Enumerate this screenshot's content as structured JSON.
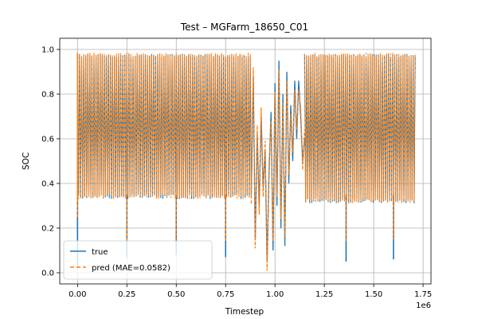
{
  "chart_data": {
    "type": "line",
    "title": "Test – MGFarm_18650_C01",
    "xlabel": "Timestep",
    "ylabel": "SOC",
    "x_multiplier_label": "1e6",
    "xlim": [
      -90000,
      1790000
    ],
    "ylim": [
      -0.05,
      1.05
    ],
    "grid": true,
    "legend_position": "lower-left",
    "x_ticks": [
      0,
      250000,
      500000,
      750000,
      1000000,
      1250000,
      1500000,
      1750000
    ],
    "x_tick_labels": [
      "0.00",
      "0.25",
      "0.50",
      "0.75",
      "1.00",
      "1.25",
      "1.50",
      "1.75"
    ],
    "y_ticks": [
      0.0,
      0.2,
      0.4,
      0.6,
      0.8,
      1.0
    ],
    "y_tick_labels": [
      "0.0",
      "0.2",
      "0.4",
      "0.6",
      "0.8",
      "1.0"
    ],
    "series": [
      {
        "name": "true",
        "style": "solid",
        "color": "#1f77b4",
        "x_range": [
          0,
          1710000
        ],
        "segments": [
          {
            "x_start": 0,
            "x_end": 880000,
            "upper": 0.98,
            "lower": 0.33
          },
          {
            "x_start": 1150000,
            "x_end": 1710000,
            "upper": 0.98,
            "lower": 0.31
          }
        ],
        "dips": [
          {
            "x": 0,
            "min": 0.02
          },
          {
            "x": 250000,
            "min": 0.07
          },
          {
            "x": 500000,
            "min": 0.08
          },
          {
            "x": 750000,
            "min": 0.07
          },
          {
            "x": 1360000,
            "min": 0.05
          },
          {
            "x": 1600000,
            "min": 0.06
          }
        ]
      },
      {
        "name": "pred (MAE=0.0582)",
        "style": "dashed",
        "color": "#ff7f0e",
        "x_range": [
          0,
          1710000
        ],
        "segments": [
          {
            "x_start": 0,
            "x_end": 880000,
            "upper": 0.985,
            "lower": 0.33
          },
          {
            "x_start": 1150000,
            "x_end": 1710000,
            "upper": 0.985,
            "lower": 0.31
          }
        ],
        "dips": [
          {
            "x": 0,
            "min": 0.25
          },
          {
            "x": 250000,
            "min": 0.14
          },
          {
            "x": 500000,
            "min": 0.15
          },
          {
            "x": 750000,
            "min": 0.14
          },
          {
            "x": 1360000,
            "min": 0.14
          },
          {
            "x": 1600000,
            "min": 0.15
          }
        ]
      }
    ],
    "middle_region": {
      "x_start": 880000,
      "x_end": 1150000,
      "points": [
        [
          880000,
          0.35
        ],
        [
          890000,
          0.88
        ],
        [
          900000,
          0.15
        ],
        [
          910000,
          0.62
        ],
        [
          920000,
          0.3
        ],
        [
          930000,
          0.7
        ],
        [
          940000,
          0.38
        ],
        [
          950000,
          0.55
        ],
        [
          960000,
          0.05
        ],
        [
          970000,
          0.45
        ],
        [
          980000,
          0.72
        ],
        [
          990000,
          0.1
        ],
        [
          1000000,
          0.85
        ],
        [
          1010000,
          0.3
        ],
        [
          1020000,
          0.95
        ],
        [
          1030000,
          0.2
        ],
        [
          1040000,
          0.8
        ],
        [
          1050000,
          0.12
        ],
        [
          1060000,
          0.9
        ],
        [
          1070000,
          0.4
        ],
        [
          1080000,
          0.75
        ],
        [
          1090000,
          0.5
        ],
        [
          1100000,
          0.86
        ],
        [
          1110000,
          0.6
        ],
        [
          1120000,
          0.86
        ],
        [
          1130000,
          0.7
        ],
        [
          1140000,
          0.5
        ],
        [
          1150000,
          0.6
        ]
      ]
    }
  }
}
